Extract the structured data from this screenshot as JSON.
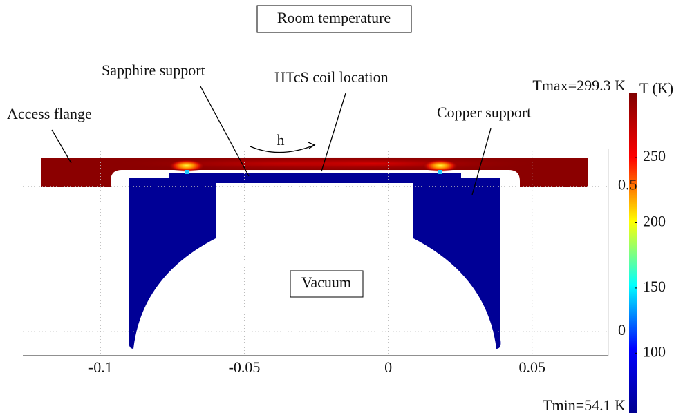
{
  "chart_data": {
    "type": "field",
    "title": "Room temperature",
    "xlim": [
      -0.127,
      0.0765
    ],
    "xticks": [
      -0.1,
      -0.05,
      0,
      0.05
    ],
    "ylim": [
      -0.083,
      0.63
    ],
    "yticks": [
      0,
      0.5
    ],
    "grid": true,
    "annotations": [
      "Sapphire support",
      "HTcS coil location",
      "Access flange",
      "Copper support",
      "h",
      "Vacuum"
    ],
    "colorbar": {
      "label": "T (K)",
      "ticks": [
        100,
        150,
        200,
        250
      ],
      "colormap": "jet",
      "max": {
        "value": 299.3,
        "label": "Tmax=299.3 K"
      },
      "min": {
        "value": 54.1,
        "label": "Tmin=54.1 K"
      }
    }
  }
}
